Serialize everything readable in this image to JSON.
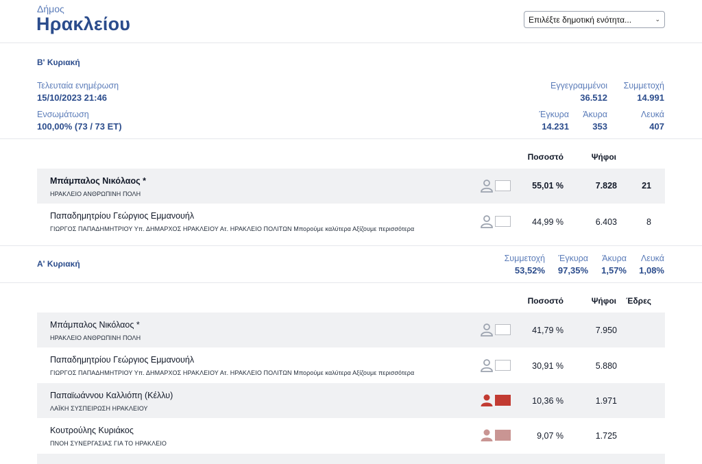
{
  "header": {
    "municipality_label": "Δήμος",
    "municipality_name": "Ηρακλείου",
    "unit_select_placeholder": "Επιλέξτε δημοτική ενότητα..."
  },
  "round2": {
    "title": "Β' Κυριακή",
    "last_update_label": "Τελευταία ενημέρωση",
    "last_update_value": "15/10/2023 21:46",
    "integration_label": "Ενσωμάτωση",
    "integration_value": "100,00% (73 / 73 ΕΤ)",
    "registered_label": "Εγγεγραμμένοι",
    "registered_value": "36.512",
    "turnout_label": "Συμμετοχή",
    "turnout_value": "14.991",
    "valid_label": "Έγκυρα",
    "valid_value": "14.231",
    "invalid_label": "Άκυρα",
    "invalid_value": "353",
    "blank_label": "Λευκά",
    "blank_value": "407",
    "col_percent": "Ποσοστό",
    "col_votes": "Ψήφοι",
    "candidates": [
      {
        "name": "Μπάμπαλος Νικόλαος *",
        "party": "ΗΡΑΚΛΕΙΟ ΑΝΘΡΩΠΙΝΗ ΠΟΛΗ",
        "percent": "55,01 %",
        "votes": "7.828",
        "seats": "21",
        "color": "#ffffff",
        "icon_color": "#9ca3af"
      },
      {
        "name": "Παπαδημητρίου Γεώργιος Εμμανουήλ",
        "party": "ΓΙΩΡΓΟΣ ΠΑΠΑΔΗΜΗΤΡΙΟΥ Υπ. ΔΗΜΑΡΧΟΣ ΗΡΑΚΛΕΙΟΥ Ατ. ΗΡΑΚΛΕΙΟ ΠΟΛΙΤΩΝ Μπορούμε καλύτερα Αξίζουμε περισσότερα",
        "percent": "44,99 %",
        "votes": "6.403",
        "seats": "8",
        "color": "#ffffff",
        "icon_color": "#9ca3af"
      }
    ]
  },
  "round1": {
    "title": "Α' Κυριακή",
    "turnout_label": "Συμμετοχή",
    "turnout_value": "53,52%",
    "valid_label": "Έγκυρα",
    "valid_value": "97,35%",
    "invalid_label": "Άκυρα",
    "invalid_value": "1,57%",
    "blank_label": "Λευκά",
    "blank_value": "1,08%",
    "col_percent": "Ποσοστό",
    "col_votes": "Ψήφοι",
    "col_seats": "Έδρες",
    "candidates": [
      {
        "name": "Μπάμπαλος Νικόλαος *",
        "party": "ΗΡΑΚΛΕΙΟ ΑΝΘΡΩΠΙΝΗ ΠΟΛΗ",
        "percent": "41,79 %",
        "votes": "7.950",
        "color": "#ffffff",
        "icon_color": "#9ca3af"
      },
      {
        "name": "Παπαδημητρίου Γεώργιος Εμμανουήλ",
        "party": "ΓΙΩΡΓΟΣ ΠΑΠΑΔΗΜΗΤΡΙΟΥ Υπ. ΔΗΜΑΡΧΟΣ ΗΡΑΚΛΕΙΟΥ Ατ. ΗΡΑΚΛΕΙΟ ΠΟΛΙΤΩΝ Μπορούμε καλύτερα Αξίζουμε περισσότερα",
        "percent": "30,91 %",
        "votes": "5.880",
        "color": "#ffffff",
        "icon_color": "#9ca3af"
      },
      {
        "name": "Παπαϊωάννου Καλλιόπη (Κέλλυ)",
        "party": "ΛΑΪΚΗ ΣΥΣΠΕΙΡΩΣΗ ΗΡΑΚΛΕΙΟΥ",
        "percent": "10,36 %",
        "votes": "1.971",
        "color": "#c23b32",
        "icon_color": "#c23b32"
      },
      {
        "name": "Κουτρούλης Κυριάκος",
        "party": "ΠΝΟΗ ΣΥΝΕΡΓΑΣΙΑΣ ΓΙΑ ΤΟ ΗΡΑΚΛΕΙΟ",
        "percent": "9,07 %",
        "votes": "1.725",
        "color": "#c99593",
        "icon_color": "#c99593"
      }
    ]
  }
}
